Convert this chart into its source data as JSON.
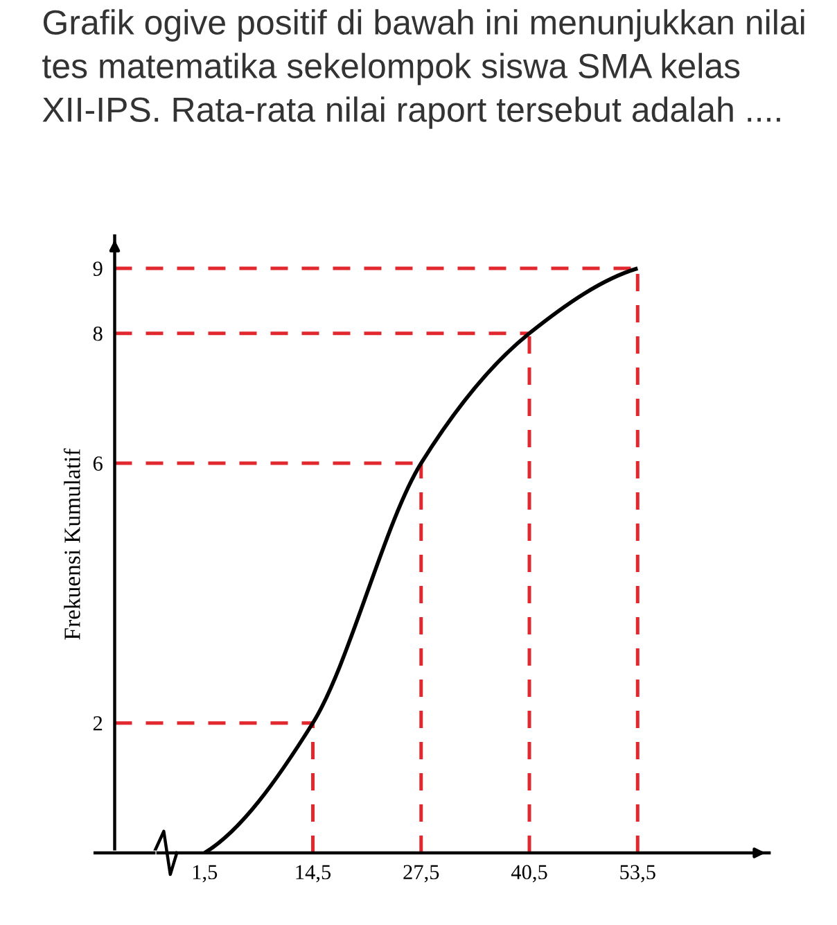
{
  "chart_data": {
    "type": "line",
    "title": "Grafik ogive positif di bawah ini menunjukkan nilai tes matematika sekelompok siswa SMA kelas XII-IPS. Rata-rata nilai raport tersebut adalah ....",
    "ylabel": "Frekuensi Kumulatif",
    "x": [
      1.5,
      14.5,
      27.5,
      40.5,
      53.5
    ],
    "series": [
      {
        "color": "#000000",
        "values": [
          0,
          2,
          6,
          8,
          9
        ]
      }
    ],
    "xlim": [
      -9.3,
      69.3
    ],
    "ylim": [
      0,
      9.5
    ],
    "xticks": [
      {
        "value": 1.5,
        "label": "1,5"
      },
      {
        "value": 14.5,
        "label": "14,5"
      },
      {
        "value": 27.5,
        "label": "27,5"
      },
      {
        "value": 40.5,
        "label": "40,5"
      },
      {
        "value": 53.5,
        "label": "53,5"
      }
    ],
    "yticks": [
      2,
      6,
      8,
      9
    ],
    "grid": false,
    "marker": "none",
    "line_style": "solid",
    "ref_lines": [
      {
        "axis": "y",
        "value": 2,
        "color": "#e0282e",
        "line_style": "dashed"
      },
      {
        "axis": "y",
        "value": 6,
        "color": "#e0282e",
        "line_style": "dashed"
      },
      {
        "axis": "y",
        "value": 8,
        "color": "#e0282e",
        "line_style": "dashed"
      },
      {
        "axis": "y",
        "value": 9,
        "color": "#e0282e",
        "line_style": "dashed"
      },
      {
        "axis": "x",
        "value": 14.5,
        "color": "#e0282e",
        "line_style": "dashed"
      },
      {
        "axis": "x",
        "value": 27.5,
        "color": "#e0282e",
        "line_style": "dashed"
      },
      {
        "axis": "x",
        "value": 40.5,
        "color": "#e0282e",
        "line_style": "dashed"
      },
      {
        "axis": "x",
        "value": 53.5,
        "color": "#e0282e",
        "line_style": "dashed"
      }
    ]
  }
}
